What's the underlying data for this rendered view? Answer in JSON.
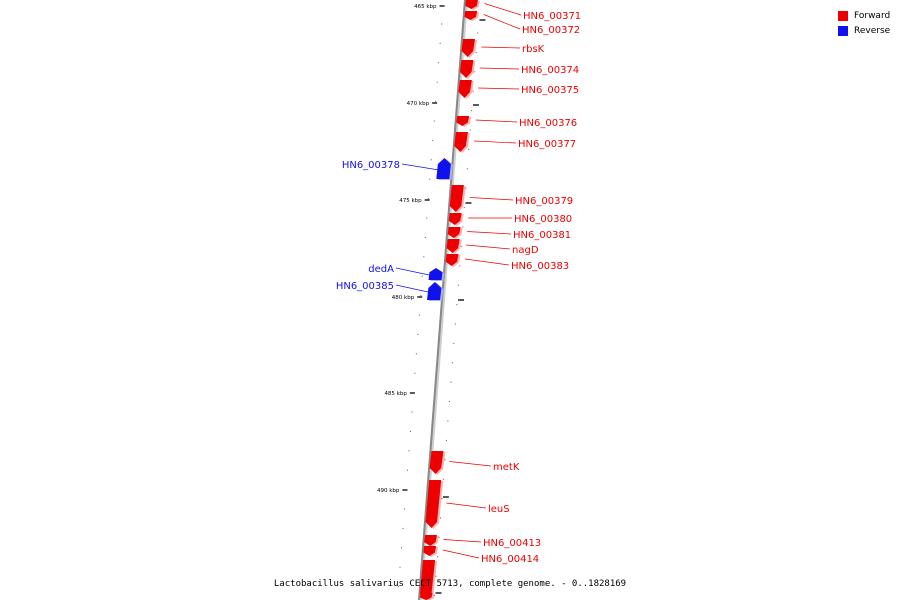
{
  "colors": {
    "forward": "#ee0000",
    "reverse": "#1111ee",
    "backbone": "#888888"
  },
  "legend": [
    {
      "label": "Forward",
      "color": "#ee0000"
    },
    {
      "label": "Reverse",
      "color": "#1111ee"
    }
  ],
  "caption": "Lactobacillus salivarius CECT 5713, complete genome. - 0..1828169",
  "scale": {
    "major_ticks_kbp": [
      465,
      470,
      475,
      480,
      485,
      490
    ],
    "major_labels": [
      "465 kbp",
      "470 kbp",
      "475 kbp",
      "480 kbp",
      "485 kbp",
      "490 kbp"
    ]
  },
  "genes": [
    {
      "label": "HN6_00371",
      "strand": "forward"
    },
    {
      "label": "HN6_00372",
      "strand": "forward"
    },
    {
      "label": "rbsK",
      "strand": "forward"
    },
    {
      "label": "HN6_00374",
      "strand": "forward"
    },
    {
      "label": "HN6_00375",
      "strand": "forward"
    },
    {
      "label": "HN6_00376",
      "strand": "forward"
    },
    {
      "label": "HN6_00377",
      "strand": "forward"
    },
    {
      "label": "HN6_00378",
      "strand": "reverse"
    },
    {
      "label": "HN6_00379",
      "strand": "forward"
    },
    {
      "label": "HN6_00380",
      "strand": "forward"
    },
    {
      "label": "HN6_00381",
      "strand": "forward"
    },
    {
      "label": "nagD",
      "strand": "forward"
    },
    {
      "label": "HN6_00383",
      "strand": "forward"
    },
    {
      "label": "dedA",
      "strand": "reverse"
    },
    {
      "label": "HN6_00385",
      "strand": "reverse"
    },
    {
      "label": "metK",
      "strand": "forward"
    },
    {
      "label": "leuS",
      "strand": "forward"
    },
    {
      "label": "HN6_00413",
      "strand": "forward"
    },
    {
      "label": "HN6_00414",
      "strand": "forward"
    }
  ]
}
